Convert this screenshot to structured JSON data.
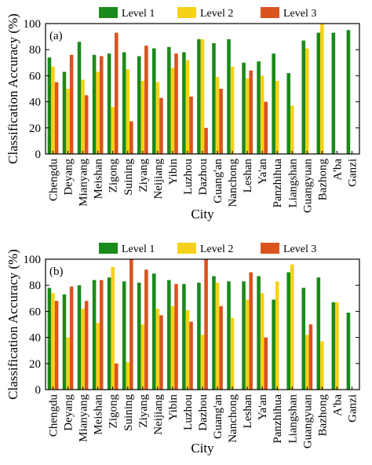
{
  "chart_data": [
    {
      "type": "bar",
      "panel_label": "(a)",
      "xlabel": "City",
      "ylabel": "Classification Accuracy (%)",
      "ylim": [
        0,
        100
      ],
      "yticks": [
        0,
        20,
        40,
        60,
        80,
        100
      ],
      "grid": false,
      "legend_placement": "top-center",
      "categories": [
        "Chengdu",
        "Deyang",
        "Mianyang",
        "Meishan",
        "Zigong",
        "Suining",
        "Ziyang",
        "Neijiang",
        "Yibin",
        "Luzhou",
        "Dazhou",
        "Guang'an",
        "Nanchong",
        "Leshan",
        "Ya'an",
        "Panzhihua",
        "Liangshan",
        "Guangyuan",
        "Bazhong",
        "A'ba",
        "Ganzi"
      ],
      "series": [
        {
          "name": "Level 1",
          "color": "#1a8a1a",
          "values": [
            74,
            63,
            86,
            76,
            77,
            78,
            75,
            81,
            82,
            78,
            88,
            85,
            88,
            70,
            71,
            77,
            62,
            87,
            93,
            93,
            95
          ]
        },
        {
          "name": "Level 2",
          "color": "#f7d117",
          "values": [
            67,
            50,
            57,
            63,
            36,
            65,
            56,
            55,
            66,
            72,
            88,
            59,
            67,
            58,
            60,
            56,
            37,
            81,
            100,
            0,
            0
          ]
        },
        {
          "name": "Level 3",
          "color": "#d9541e",
          "values": [
            55,
            76,
            45,
            75,
            93,
            25,
            83,
            43,
            77,
            44,
            20,
            50,
            0,
            64,
            40,
            0,
            0,
            0,
            0,
            0,
            0
          ]
        }
      ]
    },
    {
      "type": "bar",
      "panel_label": "(b)",
      "xlabel": "City",
      "ylabel": "Classification Accuracy (%)",
      "ylim": [
        0,
        100
      ],
      "yticks": [
        0,
        20,
        40,
        60,
        80,
        100
      ],
      "grid": false,
      "legend_placement": "top-center",
      "categories": [
        "Chengdu",
        "Deyang",
        "Mianyang",
        "Meishan",
        "Zigong",
        "Suining",
        "Ziyang",
        "Neijiang",
        "Yibin",
        "Luzhou",
        "Dazhou",
        "Guang'an",
        "Nanchong",
        "Leshan",
        "Ya'an",
        "Panzhihua",
        "Liangshan",
        "Guangyuan",
        "Bazhong",
        "A'ba",
        "Ganzi"
      ],
      "series": [
        {
          "name": "Level 1",
          "color": "#1a8a1a",
          "values": [
            78,
            73,
            80,
            84,
            86,
            83,
            82,
            89,
            84,
            81,
            82,
            87,
            83,
            83,
            87,
            69,
            90,
            78,
            86,
            67,
            59
          ]
        },
        {
          "name": "Level 2",
          "color": "#f7d117",
          "values": [
            74,
            40,
            62,
            51,
            94,
            21,
            50,
            62,
            64,
            61,
            42,
            82,
            55,
            69,
            74,
            83,
            96,
            42,
            37,
            67,
            0
          ]
        },
        {
          "name": "Level 3",
          "color": "#d9541e",
          "values": [
            68,
            79,
            68,
            84,
            20,
            100,
            92,
            57,
            81,
            52,
            100,
            64,
            0,
            90,
            40,
            0,
            0,
            50,
            0,
            0,
            0
          ]
        }
      ]
    }
  ]
}
